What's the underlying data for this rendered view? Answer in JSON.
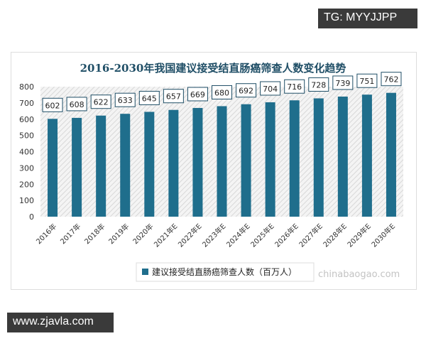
{
  "watermarks": {
    "top_right": "TG: MYYJJPP",
    "bottom_left": "www.zjavla.com",
    "logo": "观研报告网 chinabaogao.com 观研天下 ID:13672581"
  },
  "chart_data": {
    "type": "bar",
    "title": "2016-2030年我国建议接受结直肠癌筛查人数变化趋势",
    "categories": [
      "2016年",
      "2017年",
      "2018年",
      "2019年",
      "2020年",
      "2021年E",
      "2022年E",
      "2023年E",
      "2024年E",
      "2025年E",
      "2026年E",
      "2027年E",
      "2028年E",
      "2029年E",
      "2030年E"
    ],
    "series": [
      {
        "name": "建议接受结直肠癌筛查人数（百万人）",
        "values": [
          602,
          608,
          622,
          633,
          645,
          657,
          669,
          680,
          692,
          704,
          716,
          728,
          739,
          751,
          762
        ],
        "color": "#1f6e8c"
      }
    ],
    "yticks": [
      0,
      100,
      200,
      300,
      400,
      500,
      600,
      700,
      800
    ],
    "ylim": [
      0,
      800
    ],
    "legend": "bottom",
    "grid": false,
    "data_labels": true
  }
}
